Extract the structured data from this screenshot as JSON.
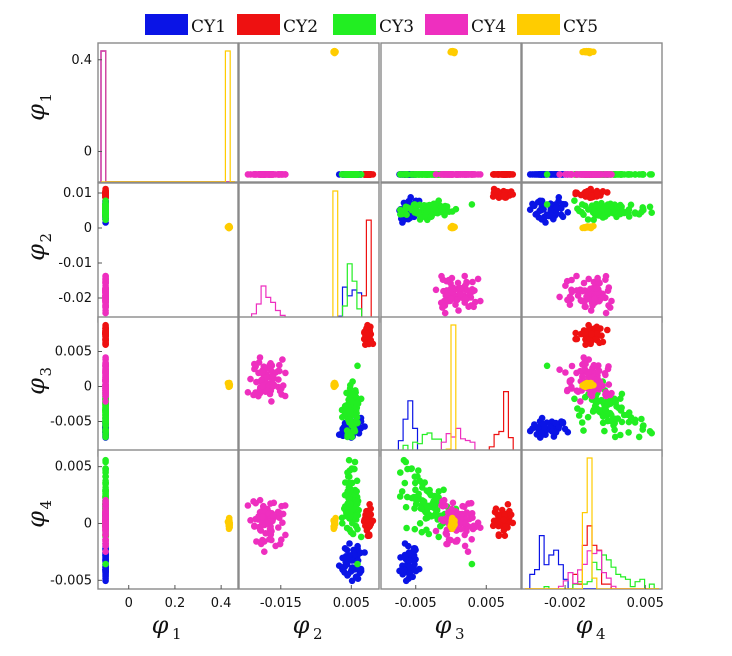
{
  "chart_data": {
    "type": "scatter",
    "layout": "scatter-matrix-4x4",
    "diagonal": "histogram",
    "legend": {
      "placement": "top",
      "entries": [
        {
          "name": "CY1",
          "color": "#0a14e6"
        },
        {
          "name": "CY2",
          "color": "#ee1111"
        },
        {
          "name": "CY3",
          "color": "#22ee22"
        },
        {
          "name": "CY4",
          "color": "#ee2fbf"
        },
        {
          "name": "CY5",
          "color": "#ffcc00"
        }
      ]
    },
    "variables": [
      {
        "symbol": "φ",
        "sub": "1",
        "range": [
          -0.12,
          0.46
        ],
        "ticks": [
          {
            "v": 0,
            "label": "0"
          },
          {
            "v": 0.2,
            "label": "0.2"
          },
          {
            "v": 0.4,
            "label": "0.4"
          }
        ],
        "yticks": [
          {
            "v": 0,
            "label": "0"
          },
          {
            "v": 0.4,
            "label": "0.4"
          }
        ]
      },
      {
        "symbol": "φ",
        "sub": "2",
        "range": [
          -0.026,
          0.012
        ],
        "ticks": [
          {
            "v": -0.015,
            "label": "-0.015"
          },
          {
            "v": 0.005,
            "label": "0.005"
          }
        ],
        "yticks": [
          {
            "v": -0.02,
            "label": "-0.02"
          },
          {
            "v": -0.01,
            "label": "-0.01"
          },
          {
            "v": 0,
            "label": "0"
          },
          {
            "v": 0.01,
            "label": "0.01"
          }
        ]
      },
      {
        "symbol": "φ",
        "sub": "3",
        "range": [
          -0.0095,
          0.0095
        ],
        "ticks": [
          {
            "v": -0.005,
            "label": "-0.005"
          },
          {
            "v": 0.005,
            "label": "0.005"
          }
        ],
        "yticks": [
          {
            "v": -0.005,
            "label": "-0.005"
          },
          {
            "v": 0,
            "label": "0"
          },
          {
            "v": 0.005,
            "label": "0.005"
          }
        ]
      },
      {
        "symbol": "φ",
        "sub": "4",
        "range": [
          -0.0055,
          0.0062
        ],
        "ticks": [
          {
            "v": -0.002,
            "label": "-0.002"
          },
          {
            "v": 0.005,
            "label": "0.005"
          }
        ],
        "yticks": [
          {
            "v": -0.005,
            "label": "-0.005"
          },
          {
            "v": 0,
            "label": "0"
          },
          {
            "v": 0.005,
            "label": "0.005"
          }
        ]
      }
    ],
    "clusters": [
      {
        "series": "CY1",
        "n": 45,
        "phi1": {
          "mean": -0.1,
          "sd": 0.0
        },
        "phi2": {
          "mean": 0.0055,
          "sd": 0.0015
        },
        "phi3": {
          "mean": -0.006,
          "sd": 0.0007
        },
        "phi4": {
          "mean": -0.0035,
          "sd": 0.0009
        }
      },
      {
        "series": "CY2",
        "n": 45,
        "phi1": {
          "mean": -0.1,
          "sd": 0.0
        },
        "phi2": {
          "mean": 0.0095,
          "sd": 0.0006
        },
        "phi3": {
          "mean": 0.0075,
          "sd": 0.0007
        },
        "phi4": {
          "mean": 0.0003,
          "sd": 0.0006
        }
      },
      {
        "series": "CY3",
        "n": 90,
        "phi1": {
          "mean": -0.1,
          "sd": 0.0
        },
        "phi2": {
          "mean": 0.005,
          "sd": 0.0012
        },
        "phi3": {
          "mean": -0.003,
          "sd": 0.0018
        },
        "phi4": {
          "mean": 0.0015,
          "sd": 0.0018
        }
      },
      {
        "series": "CY4",
        "n": 80,
        "phi1": {
          "mean": -0.1,
          "sd": 0.0
        },
        "phi2": {
          "mean": -0.019,
          "sd": 0.0022
        },
        "phi3": {
          "mean": 0.001,
          "sd": 0.0014
        },
        "phi4": {
          "mean": 0.0002,
          "sd": 0.0012
        }
      },
      {
        "series": "CY5",
        "n": 20,
        "phi1": {
          "mean": 0.435,
          "sd": 0.002
        },
        "phi2": {
          "mean": 0.0002,
          "sd": 0.0002
        },
        "phi3": {
          "mean": 0.0002,
          "sd": 0.0002
        },
        "phi4": {
          "mean": 0.0001,
          "sd": 0.0002
        }
      }
    ]
  }
}
